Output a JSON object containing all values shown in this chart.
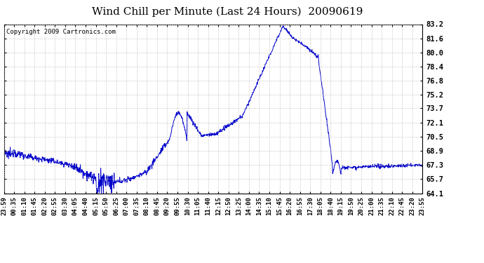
{
  "title": "Wind Chill per Minute (Last 24 Hours)  20090619",
  "copyright": "Copyright 2009 Cartronics.com",
  "line_color": "#0000cc",
  "background_color": "#ffffff",
  "grid_color": "#bbbbbb",
  "ylim": [
    64.1,
    83.2
  ],
  "yticks": [
    64.1,
    65.7,
    67.3,
    68.9,
    70.5,
    72.1,
    73.7,
    75.2,
    76.8,
    78.4,
    80.0,
    81.6,
    83.2
  ],
  "xtick_labels": [
    "23:59",
    "00:35",
    "01:10",
    "01:45",
    "02:20",
    "02:55",
    "03:30",
    "04:05",
    "04:40",
    "05:15",
    "05:50",
    "06:25",
    "07:00",
    "07:35",
    "08:10",
    "08:45",
    "09:20",
    "09:55",
    "10:30",
    "11:05",
    "11:40",
    "12:15",
    "12:50",
    "13:25",
    "14:00",
    "14:35",
    "15:10",
    "15:45",
    "16:20",
    "16:55",
    "17:30",
    "18:05",
    "18:40",
    "19:15",
    "19:50",
    "20:25",
    "21:00",
    "21:35",
    "22:10",
    "22:45",
    "23:20",
    "23:55"
  ],
  "title_fontsize": 11,
  "copyright_fontsize": 6.5,
  "tick_label_fontsize": 6.5,
  "ytick_fontsize": 7.5
}
